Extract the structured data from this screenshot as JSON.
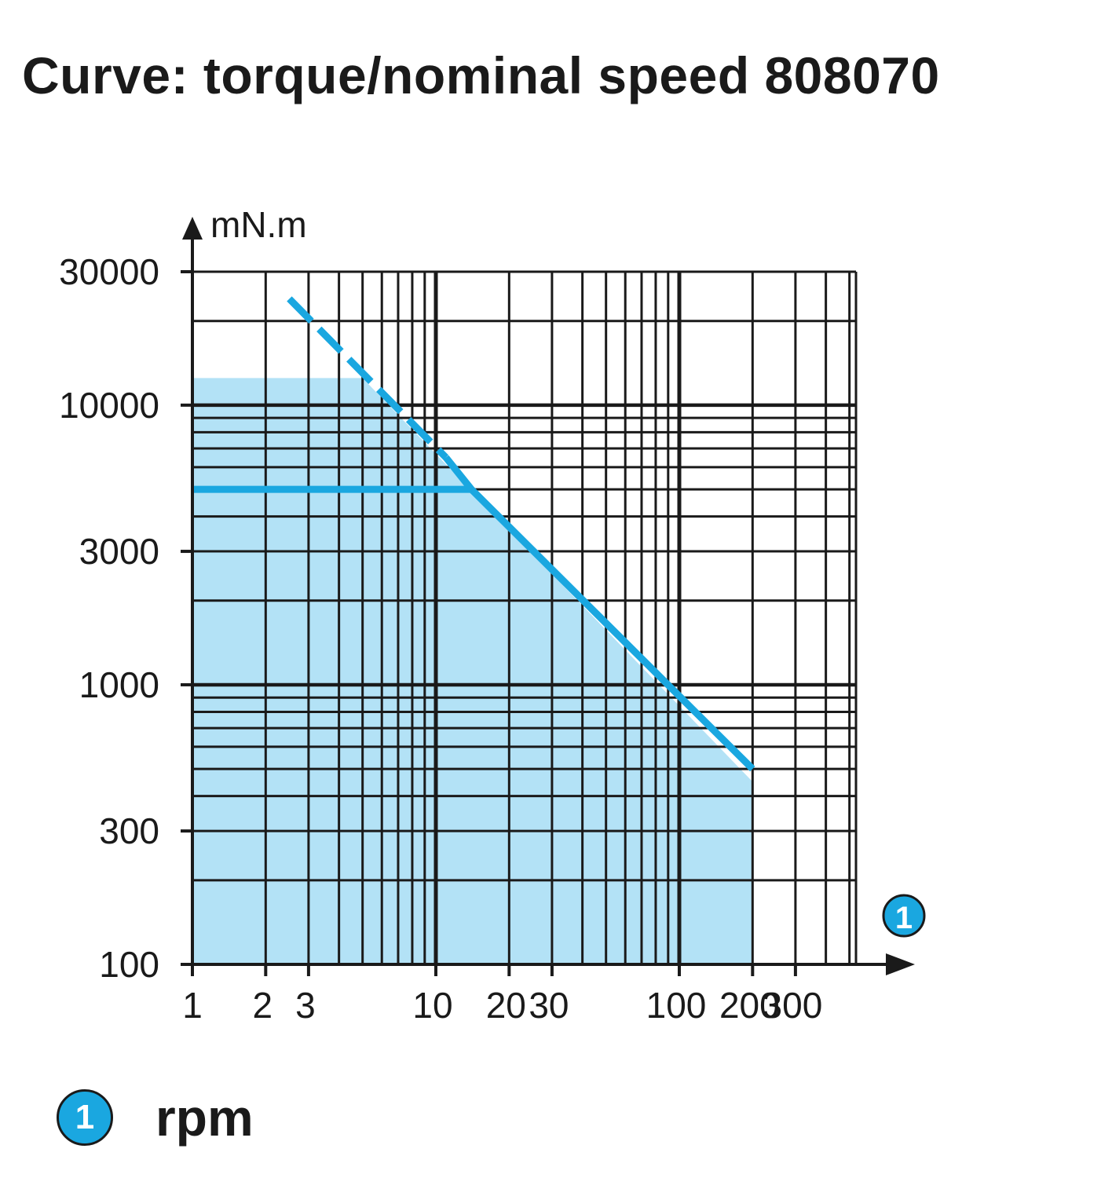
{
  "title": "Curve: torque/nominal speed 808070",
  "colors": {
    "accent": "#1aa7e0",
    "fill": "#b3e2f6",
    "grid": "#1a1a1a"
  },
  "chart_data": {
    "type": "line",
    "x_scale": "log",
    "y_scale": "log",
    "xlim": [
      1,
      400
    ],
    "ylim": [
      100,
      30000
    ],
    "x_ticks": [
      1,
      2,
      3,
      10,
      20,
      30,
      100,
      200,
      300
    ],
    "x_tick_labels": [
      "1",
      "2",
      "3",
      "10",
      "20",
      "30",
      "100",
      "200",
      "300"
    ],
    "y_ticks": [
      100,
      300,
      1000,
      3000,
      10000,
      30000
    ],
    "y_tick_labels": [
      "100",
      "300",
      "1000",
      "3000",
      "10000",
      "30000"
    ],
    "y_unit_label": "mN.m",
    "x_axis_marker": "1",
    "grid": true,
    "series": [
      {
        "style": "dashed",
        "x": [
          2.5,
          11
        ],
        "y": [
          24000,
          6500
        ]
      },
      {
        "style": "solid",
        "x": [
          11,
          14,
          200
        ],
        "y": [
          6500,
          5000,
          500
        ]
      },
      {
        "style": "solid",
        "x": [
          1,
          14
        ],
        "y": [
          5000,
          5000
        ]
      }
    ],
    "shaded_region": {
      "x": [
        1,
        5,
        200,
        200,
        1
      ],
      "y": [
        12500,
        12500,
        450,
        100,
        100
      ]
    }
  },
  "legend": {
    "marker": "1",
    "label": "rpm"
  }
}
